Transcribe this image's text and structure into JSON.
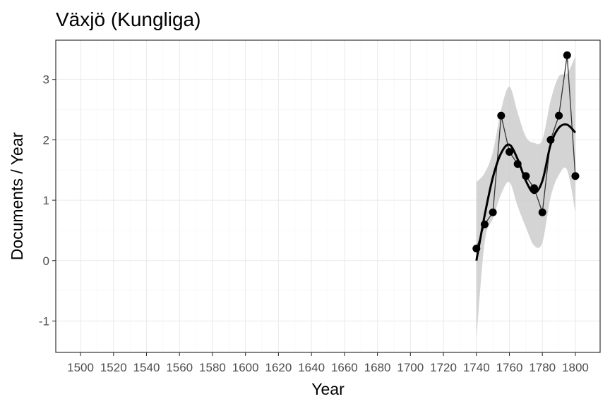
{
  "chart_data": {
    "type": "line",
    "title": "Växjö (Kungliga)",
    "xlabel": "Year",
    "ylabel": "Documents / Year",
    "xlim": [
      1485,
      1815
    ],
    "ylim": [
      -1.52,
      3.65
    ],
    "x_ticks": [
      1500,
      1520,
      1540,
      1560,
      1580,
      1600,
      1620,
      1640,
      1660,
      1680,
      1700,
      1720,
      1740,
      1760,
      1780,
      1800
    ],
    "x_tick_labels": [
      "1500",
      "1520",
      "1540",
      "1560",
      "1580",
      "1600",
      "1620",
      "1640",
      "1660",
      "1680",
      "1700",
      "1720",
      "1740",
      "1760",
      "1780",
      "1800"
    ],
    "y_ticks": [
      -1,
      0,
      1,
      2,
      3
    ],
    "y_tick_labels": [
      "-1",
      "0",
      "1",
      "2",
      "3"
    ],
    "grid": true,
    "series": [
      {
        "kind": "observed",
        "x": [
          1740,
          1745,
          1750,
          1755,
          1760,
          1765,
          1770,
          1775,
          1780,
          1785,
          1790,
          1795,
          1800
        ],
        "y": [
          0.2,
          0.6,
          0.8,
          2.4,
          1.8,
          1.6,
          1.4,
          1.2,
          0.8,
          2.0,
          2.4,
          3.4,
          1.4
        ]
      },
      {
        "kind": "smooth",
        "x": [
          1740,
          1745,
          1750,
          1755,
          1760,
          1765,
          1770,
          1775,
          1780,
          1785,
          1790,
          1795,
          1800
        ],
        "y": [
          0.0,
          0.75,
          1.38,
          1.78,
          1.92,
          1.68,
          1.32,
          1.12,
          1.32,
          1.92,
          2.2,
          2.25,
          2.12
        ],
        "lower": [
          -1.3,
          0.3,
          0.7,
          1.1,
          1.3,
          0.9,
          0.55,
          0.25,
          0.3,
          1.05,
          1.42,
          1.5,
          0.8
        ],
        "upper": [
          1.3,
          1.45,
          1.8,
          2.5,
          2.88,
          2.45,
          2.05,
          1.95,
          2.0,
          2.65,
          3.05,
          3.1,
          3.38
        ]
      }
    ],
    "colors": {
      "panel_border": "#333333",
      "grid_major": "#ebebeb",
      "grid_minor": "#f5f5f5",
      "ribbon": "#cccccc",
      "observed_line": "#333333",
      "smooth_line": "#000000",
      "point": "#000000",
      "tick_text": "#4d4d4d"
    }
  }
}
